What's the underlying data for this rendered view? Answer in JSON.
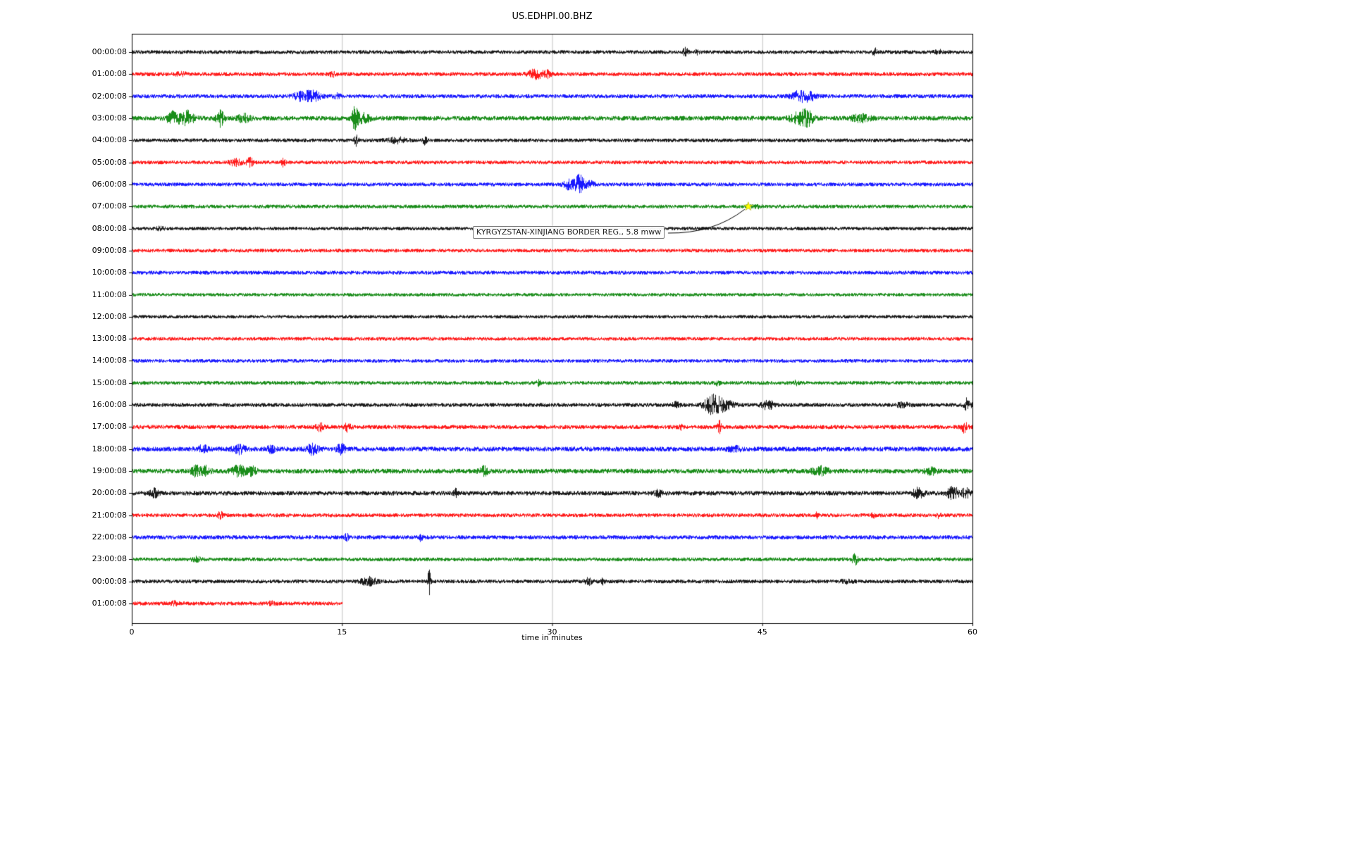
{
  "chart_data": {
    "type": "line",
    "title": "US.EDHPI.00.BHZ",
    "xlabel": "time in minutes",
    "xlim": [
      0,
      60
    ],
    "xticks": [
      0,
      15,
      30,
      45,
      60
    ],
    "grid": true,
    "grid_color": "#b0b0b0",
    "color_cycle": [
      "#000000",
      "#ff0000",
      "#0000ff",
      "#008000"
    ],
    "annotation": {
      "text": "KYRGYZSTAN-XINJIANG BORDER REG., 5.8 mww",
      "row_index": 7,
      "t": 44.0,
      "marker": "star",
      "marker_color": "#ffff00"
    },
    "rows": [
      {
        "label": "00:00:08",
        "color": "#000000",
        "base": 1.0,
        "events": [
          {
            "t": 39.5,
            "a": 2.5,
            "w": 0.12
          },
          {
            "t": 40.3,
            "a": 1.2,
            "w": 0.1
          },
          {
            "t": 53.0,
            "a": 2.0,
            "w": 0.1
          },
          {
            "t": 57.6,
            "a": 0.8,
            "w": 0.3
          }
        ]
      },
      {
        "label": "01:00:08",
        "color": "#ff0000",
        "base": 1.05,
        "events": [
          {
            "t": 3.5,
            "a": 0.8,
            "w": 0.3
          },
          {
            "t": 14.3,
            "a": 1.2,
            "w": 0.15
          },
          {
            "t": 28.8,
            "a": 2.6,
            "w": 0.35
          },
          {
            "t": 29.6,
            "a": 1.8,
            "w": 0.2
          }
        ]
      },
      {
        "label": "02:00:08",
        "color": "#0000ff",
        "base": 1.05,
        "events": [
          {
            "t": 12.2,
            "a": 2.8,
            "w": 0.45
          },
          {
            "t": 13.1,
            "a": 2.2,
            "w": 0.3
          },
          {
            "t": 14.6,
            "a": 1.2,
            "w": 0.2
          },
          {
            "t": 47.6,
            "a": 2.8,
            "w": 0.4
          },
          {
            "t": 48.4,
            "a": 2.2,
            "w": 0.3
          }
        ]
      },
      {
        "label": "03:00:08",
        "color": "#008000",
        "base": 1.25,
        "events": [
          {
            "t": 2.9,
            "a": 2.8,
            "w": 0.3
          },
          {
            "t": 3.9,
            "a": 3.2,
            "w": 0.35
          },
          {
            "t": 6.3,
            "a": 3.8,
            "w": 0.18
          },
          {
            "t": 8.0,
            "a": 1.8,
            "w": 0.3
          },
          {
            "t": 15.9,
            "a": 5.0,
            "w": 0.12
          },
          {
            "t": 16.4,
            "a": 2.2,
            "w": 0.4
          },
          {
            "t": 47.3,
            "a": 1.8,
            "w": 0.3
          },
          {
            "t": 48.1,
            "a": 3.8,
            "w": 0.35
          },
          {
            "t": 52.0,
            "a": 1.4,
            "w": 0.5
          }
        ]
      },
      {
        "label": "04:00:08",
        "color": "#000000",
        "base": 1.0,
        "events": [
          {
            "t": 16.0,
            "a": 3.2,
            "w": 0.1
          },
          {
            "t": 18.9,
            "a": 1.4,
            "w": 0.5
          },
          {
            "t": 20.9,
            "a": 2.0,
            "w": 0.1
          }
        ]
      },
      {
        "label": "05:00:08",
        "color": "#ff0000",
        "base": 1.0,
        "events": [
          {
            "t": 7.4,
            "a": 1.8,
            "w": 0.3
          },
          {
            "t": 8.4,
            "a": 3.2,
            "w": 0.15
          },
          {
            "t": 10.8,
            "a": 2.4,
            "w": 0.1
          }
        ]
      },
      {
        "label": "06:00:08",
        "color": "#0000ff",
        "base": 1.0,
        "events": [
          {
            "t": 31.2,
            "a": 2.6,
            "w": 0.3
          },
          {
            "t": 31.9,
            "a": 5.5,
            "w": 0.22
          },
          {
            "t": 32.6,
            "a": 1.8,
            "w": 0.3
          }
        ]
      },
      {
        "label": "07:00:08",
        "color": "#008000",
        "base": 1.0,
        "events": [
          {
            "t": 44.5,
            "a": 0.7,
            "w": 0.3
          }
        ]
      },
      {
        "label": "08:00:08",
        "color": "#000000",
        "base": 0.95,
        "events": [
          {
            "t": 2.0,
            "a": 0.7,
            "w": 0.2
          }
        ]
      },
      {
        "label": "09:00:08",
        "color": "#ff0000",
        "base": 0.95,
        "events": []
      },
      {
        "label": "10:00:08",
        "color": "#0000ff",
        "base": 1.0,
        "events": []
      },
      {
        "label": "11:00:08",
        "color": "#008000",
        "base": 0.9,
        "events": []
      },
      {
        "label": "12:00:08",
        "color": "#000000",
        "base": 0.9,
        "events": []
      },
      {
        "label": "13:00:08",
        "color": "#ff0000",
        "base": 0.95,
        "events": []
      },
      {
        "label": "14:00:08",
        "color": "#0000ff",
        "base": 0.95,
        "events": []
      },
      {
        "label": "15:00:08",
        "color": "#008000",
        "base": 1.0,
        "events": [
          {
            "t": 29.0,
            "a": 1.4,
            "w": 0.1
          },
          {
            "t": 41.8,
            "a": 1.4,
            "w": 0.1
          },
          {
            "t": 47.4,
            "a": 1.1,
            "w": 0.15
          }
        ]
      },
      {
        "label": "16:00:08",
        "color": "#000000",
        "base": 1.05,
        "events": [
          {
            "t": 38.8,
            "a": 1.3,
            "w": 0.2
          },
          {
            "t": 41.4,
            "a": 4.5,
            "w": 0.4
          },
          {
            "t": 42.2,
            "a": 2.6,
            "w": 0.5
          },
          {
            "t": 45.4,
            "a": 2.4,
            "w": 0.3
          },
          {
            "t": 55.0,
            "a": 0.9,
            "w": 0.4
          },
          {
            "t": 59.6,
            "a": 3.5,
            "w": 0.18
          }
        ]
      },
      {
        "label": "17:00:08",
        "color": "#ff0000",
        "base": 1.1,
        "events": [
          {
            "t": 13.4,
            "a": 1.8,
            "w": 0.2
          },
          {
            "t": 15.4,
            "a": 2.2,
            "w": 0.15
          },
          {
            "t": 39.2,
            "a": 1.4,
            "w": 0.1
          },
          {
            "t": 41.9,
            "a": 4.5,
            "w": 0.08
          },
          {
            "t": 59.4,
            "a": 2.6,
            "w": 0.15
          }
        ]
      },
      {
        "label": "18:00:08",
        "color": "#0000ff",
        "base": 1.3,
        "events": [
          {
            "t": 5.0,
            "a": 1.4,
            "w": 0.3
          },
          {
            "t": 7.6,
            "a": 1.8,
            "w": 0.3
          },
          {
            "t": 9.9,
            "a": 1.4,
            "w": 0.2
          },
          {
            "t": 12.9,
            "a": 2.2,
            "w": 0.3
          },
          {
            "t": 14.9,
            "a": 2.2,
            "w": 0.2
          },
          {
            "t": 43.0,
            "a": 0.9,
            "w": 0.3
          }
        ]
      },
      {
        "label": "19:00:08",
        "color": "#008000",
        "base": 1.3,
        "events": [
          {
            "t": 4.6,
            "a": 2.2,
            "w": 0.25
          },
          {
            "t": 5.3,
            "a": 1.8,
            "w": 0.2
          },
          {
            "t": 7.6,
            "a": 2.2,
            "w": 0.35
          },
          {
            "t": 8.6,
            "a": 1.8,
            "w": 0.2
          },
          {
            "t": 25.1,
            "a": 1.8,
            "w": 0.2
          },
          {
            "t": 49.1,
            "a": 1.8,
            "w": 0.4
          },
          {
            "t": 57.0,
            "a": 1.3,
            "w": 0.3
          }
        ]
      },
      {
        "label": "20:00:08",
        "color": "#000000",
        "base": 1.2,
        "events": [
          {
            "t": 1.6,
            "a": 1.8,
            "w": 0.2
          },
          {
            "t": 23.1,
            "a": 1.6,
            "w": 0.1
          },
          {
            "t": 37.6,
            "a": 1.4,
            "w": 0.2
          },
          {
            "t": 56.1,
            "a": 2.2,
            "w": 0.3
          },
          {
            "t": 58.6,
            "a": 2.8,
            "w": 0.3
          },
          {
            "t": 59.5,
            "a": 2.2,
            "w": 0.2
          }
        ]
      },
      {
        "label": "21:00:08",
        "color": "#ff0000",
        "base": 1.0,
        "events": [
          {
            "t": 6.3,
            "a": 1.8,
            "w": 0.15
          },
          {
            "t": 48.9,
            "a": 1.8,
            "w": 0.1
          },
          {
            "t": 52.9,
            "a": 1.1,
            "w": 0.1
          },
          {
            "t": 57.6,
            "a": 1.4,
            "w": 0.1
          }
        ]
      },
      {
        "label": "22:00:08",
        "color": "#0000ff",
        "base": 1.1,
        "events": [
          {
            "t": 15.3,
            "a": 1.8,
            "w": 0.1
          },
          {
            "t": 20.6,
            "a": 1.8,
            "w": 0.1
          }
        ]
      },
      {
        "label": "23:00:08",
        "color": "#008000",
        "base": 1.0,
        "events": [
          {
            "t": 4.6,
            "a": 1.3,
            "w": 0.2
          },
          {
            "t": 51.6,
            "a": 2.8,
            "w": 0.15
          }
        ]
      },
      {
        "label": "00:00:08",
        "color": "#000000",
        "base": 1.0,
        "events": [
          {
            "t": 16.9,
            "a": 2.2,
            "w": 0.4
          },
          {
            "t": 21.2,
            "a": 8.0,
            "w": 0.07
          },
          {
            "t": 32.6,
            "a": 1.8,
            "w": 0.2
          },
          {
            "t": 33.6,
            "a": 1.3,
            "w": 0.1
          },
          {
            "t": 51.0,
            "a": 0.9,
            "w": 0.3
          }
        ]
      },
      {
        "label": "01:00:08",
        "color": "#ff0000",
        "base": 1.05,
        "end": 15,
        "events": [
          {
            "t": 3.0,
            "a": 0.9,
            "w": 0.2
          },
          {
            "t": 10.0,
            "a": 0.9,
            "w": 0.2
          }
        ]
      }
    ]
  }
}
